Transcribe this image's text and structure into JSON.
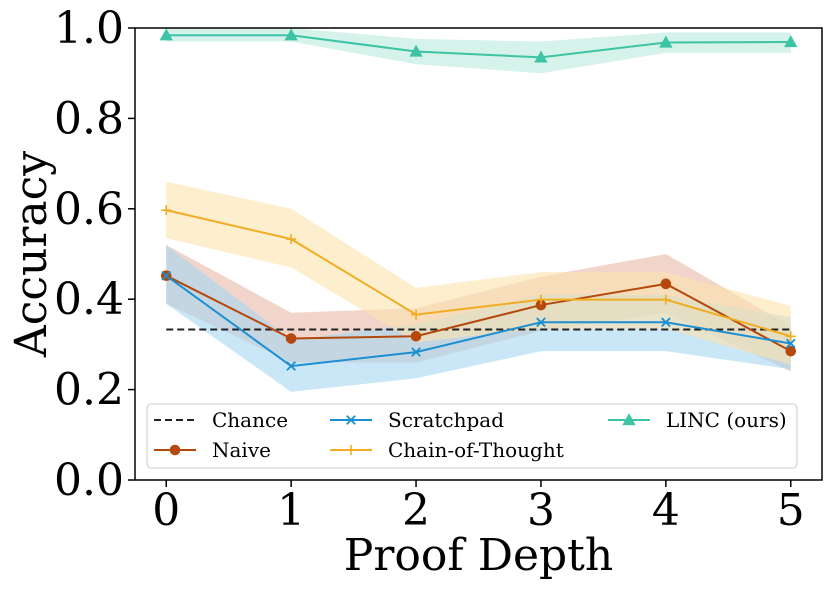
{
  "chart_data": {
    "type": "line",
    "xlabel": "Proof Depth",
    "ylabel": "Accuracy",
    "xlim": [
      -0.25,
      5.25
    ],
    "ylim": [
      0.0,
      1.0
    ],
    "x": [
      0,
      1,
      2,
      3,
      4,
      5
    ],
    "xticks": [
      "0",
      "1",
      "2",
      "3",
      "4",
      "5"
    ],
    "yticks": [
      "0.0",
      "0.2",
      "0.4",
      "0.6",
      "0.8",
      "1.0"
    ],
    "ytick_values": [
      0.0,
      0.2,
      0.4,
      0.6,
      0.8,
      1.0
    ],
    "legend_position": "lower-center",
    "series": [
      {
        "name": "Chance",
        "color": "#222222",
        "marker": "none",
        "style": "dashed",
        "values": [
          0.333,
          0.333,
          0.333,
          0.333,
          0.333,
          0.333
        ]
      },
      {
        "name": "Naive",
        "color": "#b5490d",
        "band_color": "#e8b9a6",
        "marker": "circle",
        "values": [
          0.452,
          0.313,
          0.318,
          0.387,
          0.434,
          0.285
        ],
        "lower": [
          0.39,
          0.26,
          0.26,
          0.33,
          0.37,
          0.24
        ],
        "upper": [
          0.52,
          0.37,
          0.38,
          0.45,
          0.5,
          0.34
        ]
      },
      {
        "name": "Scratchpad",
        "color": "#1b8fd2",
        "band_color": "#a6d7f1",
        "marker": "x",
        "values": [
          0.452,
          0.252,
          0.283,
          0.349,
          0.349,
          0.302
        ],
        "lower": [
          0.39,
          0.195,
          0.225,
          0.285,
          0.285,
          0.245
        ],
        "upper": [
          0.52,
          0.31,
          0.345,
          0.41,
          0.41,
          0.36
        ]
      },
      {
        "name": "Chain-of-Thought",
        "color": "#f0ad22",
        "band_color": "#fbe3ad",
        "marker": "plus",
        "values": [
          0.597,
          0.533,
          0.366,
          0.399,
          0.399,
          0.318
        ],
        "lower": [
          0.535,
          0.47,
          0.305,
          0.335,
          0.335,
          0.255
        ],
        "upper": [
          0.66,
          0.6,
          0.425,
          0.46,
          0.46,
          0.385
        ]
      },
      {
        "name": "LINC (ours)",
        "color": "#3cc4a4",
        "band_color": "#b9e9dd",
        "marker": "triangle",
        "values": [
          0.984,
          0.984,
          0.948,
          0.935,
          0.968,
          0.969
        ],
        "lower": [
          0.97,
          0.97,
          0.92,
          0.9,
          0.945,
          0.945
        ],
        "upper": [
          1.0,
          1.0,
          0.976,
          0.97,
          0.99,
          0.99
        ]
      }
    ]
  }
}
